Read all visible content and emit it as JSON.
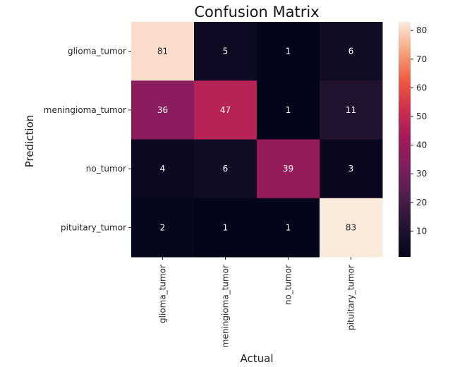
{
  "chart_data": {
    "type": "heatmap",
    "title": "Confusion Matrix",
    "xlabel": "Actual",
    "ylabel": "Prediction",
    "x_categories": [
      "glioma_tumor",
      "meningioma_tumor",
      "no_tumor",
      "pituitary_tumor"
    ],
    "y_categories": [
      "glioma_tumor",
      "meningioma_tumor",
      "no_tumor",
      "pituitary_tumor"
    ],
    "values": [
      [
        81,
        5,
        1,
        6
      ],
      [
        36,
        47,
        1,
        11
      ],
      [
        4,
        6,
        39,
        3
      ],
      [
        2,
        1,
        1,
        83
      ]
    ],
    "colorbar": {
      "vmin": 1,
      "vmax": 83,
      "ticks": [
        "10",
        "20",
        "30",
        "40",
        "50",
        "60",
        "70",
        "80"
      ],
      "colormap": "rocket"
    }
  }
}
